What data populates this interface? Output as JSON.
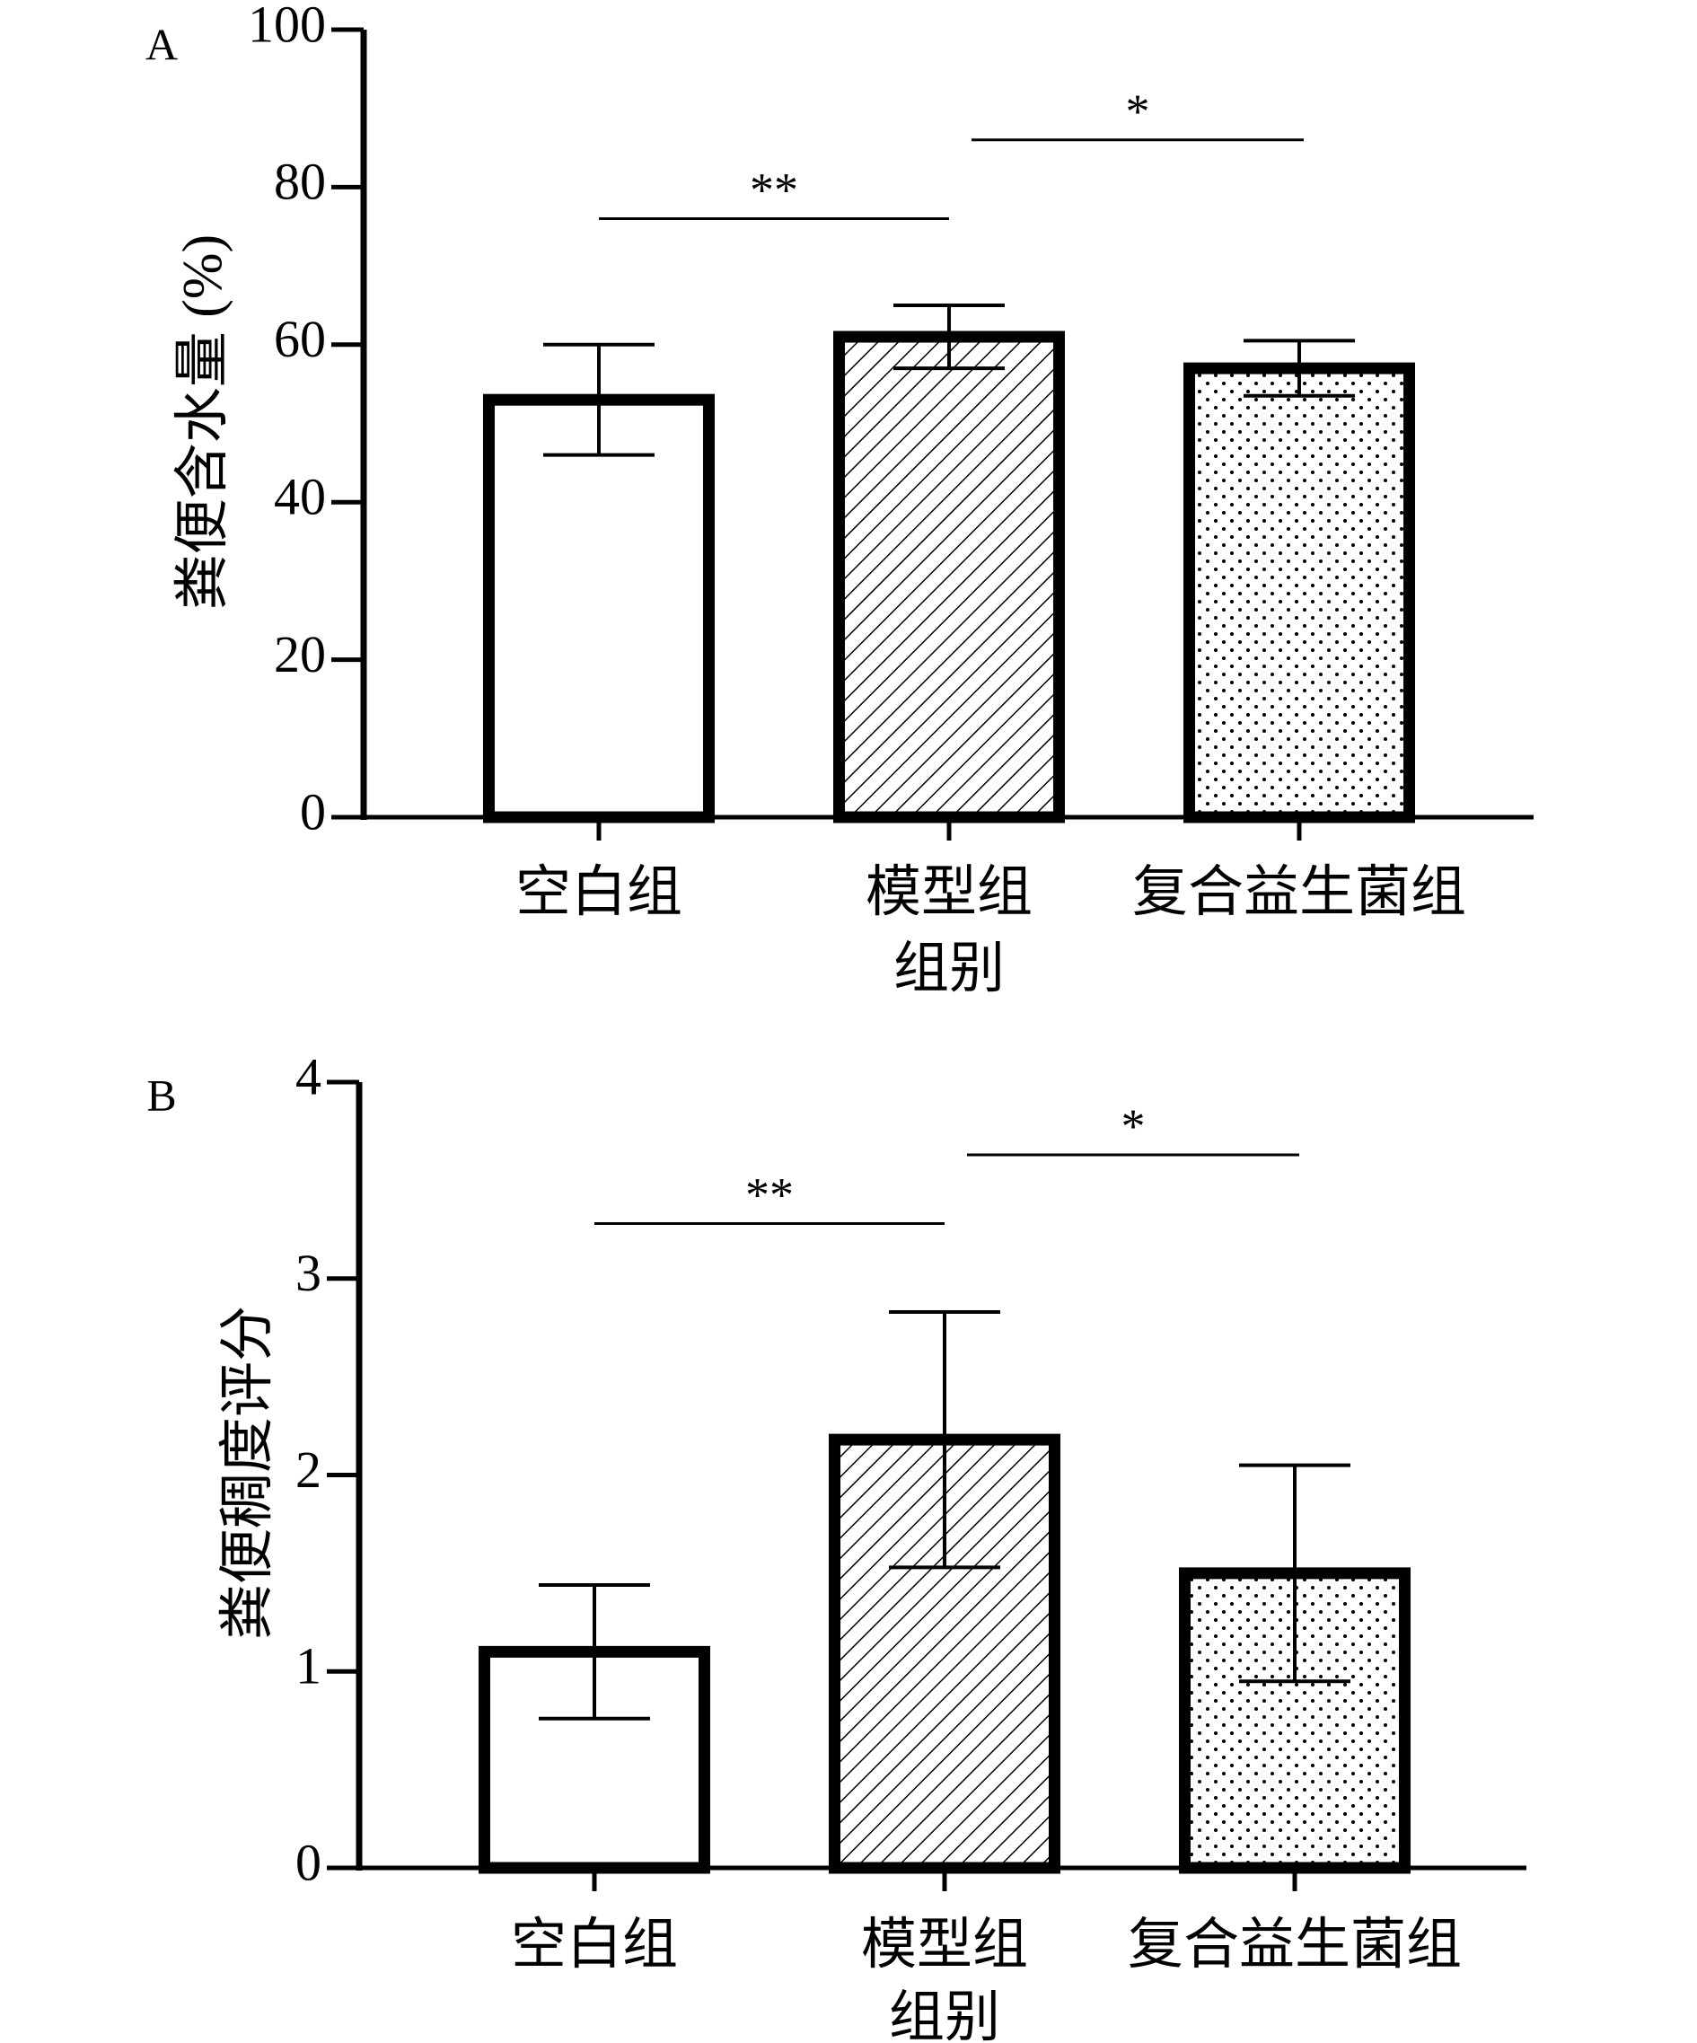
{
  "chart_data": [
    {
      "panel": "A",
      "type": "bar",
      "categories": [
        "空白组",
        "模型组",
        "复合益生菌组"
      ],
      "values": [
        53,
        61,
        57
      ],
      "errors": [
        7,
        4,
        3.5
      ],
      "patterns": [
        "none",
        "diagonal-hatch",
        "dots"
      ],
      "ylabel": "粪便含水量 (%)",
      "xlabel": "组别",
      "ylim": [
        0,
        100
      ],
      "yticks": [
        "0",
        "20",
        "40",
        "60",
        "80",
        "100"
      ],
      "grid": false,
      "significance": [
        {
          "from": 0,
          "to": 1,
          "label": "**",
          "y": 76
        },
        {
          "from": 1,
          "to": 2,
          "label": "*",
          "y": 86
        }
      ]
    },
    {
      "panel": "B",
      "type": "bar",
      "categories": [
        "空白组",
        "模型组",
        "复合益生菌组"
      ],
      "values": [
        1.1,
        2.18,
        1.5
      ],
      "errors": [
        0.34,
        0.65,
        0.55
      ],
      "patterns": [
        "none",
        "diagonal-hatch",
        "dots"
      ],
      "ylabel": "粪便稠度评分",
      "xlabel": "组别",
      "ylim": [
        0,
        4
      ],
      "yticks": [
        "0",
        "1",
        "2",
        "3",
        "4"
      ],
      "grid": false,
      "significance": [
        {
          "from": 0,
          "to": 1,
          "label": "**",
          "y": 3.28
        },
        {
          "from": 1,
          "to": 2,
          "label": "*",
          "y": 3.63
        }
      ]
    }
  ]
}
